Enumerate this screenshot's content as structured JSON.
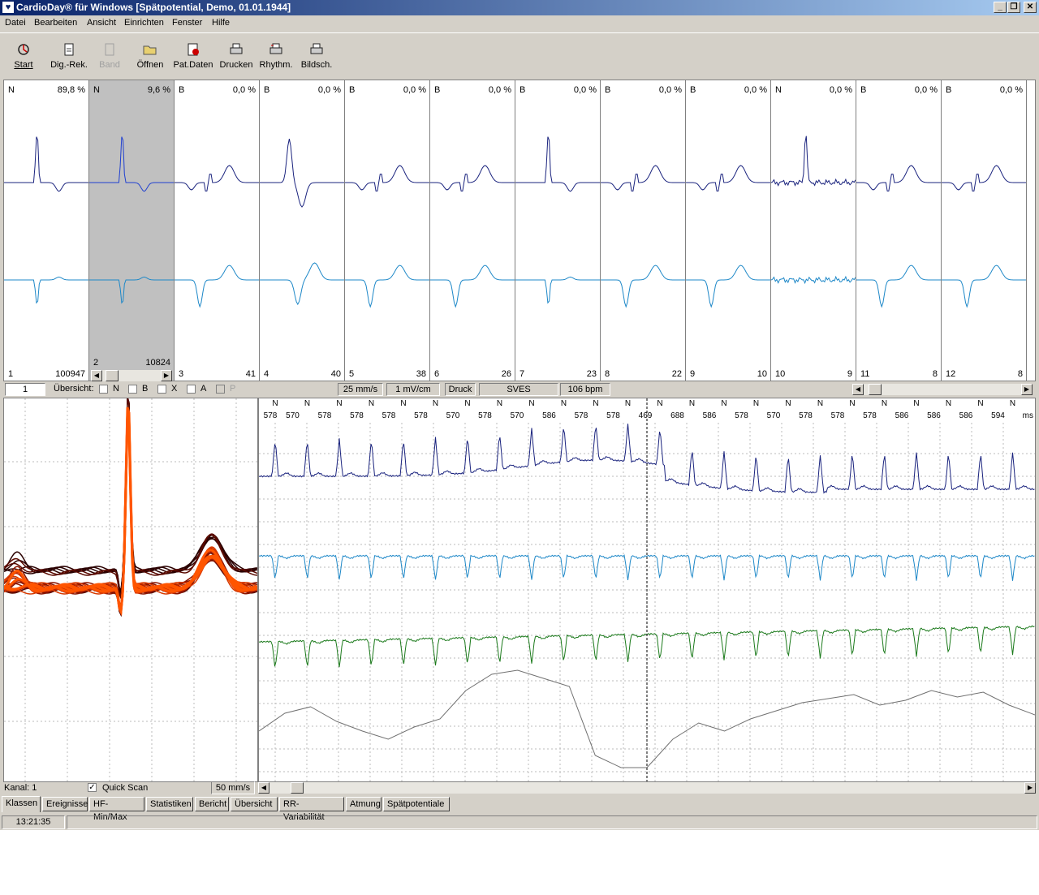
{
  "window": {
    "title": "CardioDay® für Windows [Spätpotential, Demo, 01.01.1944]",
    "minimize": "_",
    "restore": "❐",
    "close": "✕"
  },
  "menu": [
    "Datei",
    "Bearbeiten",
    "Ansicht",
    "Einrichten",
    "Fenster",
    "Hilfe"
  ],
  "toolbar": [
    {
      "label": "Start",
      "icon": "start-icon",
      "enabled": true
    },
    {
      "label": "Dig.-Rek.",
      "icon": "document-icon",
      "enabled": true
    },
    {
      "label": "Band",
      "icon": "band-icon",
      "enabled": false
    },
    {
      "label": "Öffnen",
      "icon": "folder-open-icon",
      "enabled": true
    },
    {
      "label": "Pat.Daten",
      "icon": "patient-data-icon",
      "enabled": true
    },
    {
      "label": "Drucken",
      "icon": "printer-icon",
      "enabled": true
    },
    {
      "label": "Rhythm.",
      "icon": "rhythm-icon",
      "enabled": true
    },
    {
      "label": "Bildsch.",
      "icon": "screen-print-icon",
      "enabled": true
    }
  ],
  "classes": [
    {
      "label": "N",
      "percent": "89,8 %",
      "index": "1",
      "count": "100947",
      "selected": false
    },
    {
      "label": "N",
      "percent": "9,6 %",
      "index": "2",
      "count": "10824",
      "selected": true
    },
    {
      "label": "B",
      "percent": "0,0 %",
      "index": "3",
      "count": "41",
      "selected": false
    },
    {
      "label": "B",
      "percent": "0,0 %",
      "index": "4",
      "count": "40",
      "selected": false
    },
    {
      "label": "B",
      "percent": "0,0 %",
      "index": "5",
      "count": "38",
      "selected": false
    },
    {
      "label": "B",
      "percent": "0,0 %",
      "index": "6",
      "count": "26",
      "selected": false
    },
    {
      "label": "B",
      "percent": "0,0 %",
      "index": "7",
      "count": "23",
      "selected": false
    },
    {
      "label": "B",
      "percent": "0,0 %",
      "index": "8",
      "count": "22",
      "selected": false
    },
    {
      "label": "B",
      "percent": "0,0 %",
      "index": "9",
      "count": "10",
      "selected": false
    },
    {
      "label": "N",
      "percent": "0,0 %",
      "index": "10",
      "count": "9",
      "selected": false
    },
    {
      "label": "B",
      "percent": "0,0 %",
      "index": "11",
      "count": "8",
      "selected": false
    },
    {
      "label": "B",
      "percent": "0,0 %",
      "index": "12",
      "count": "8",
      "selected": false
    }
  ],
  "controls": {
    "class_number": "1",
    "overview_label": "Übersicht:",
    "filters": [
      {
        "label": "N",
        "enabled": true
      },
      {
        "label": "B",
        "enabled": true
      },
      {
        "label": "X",
        "enabled": true
      },
      {
        "label": "A",
        "enabled": true
      },
      {
        "label": "P",
        "enabled": false
      }
    ],
    "speed": "25 mm/s",
    "gain": "1 mV/cm",
    "druck": "Druck",
    "event": "SVES",
    "heart_rate": "106 bpm"
  },
  "strip": {
    "beat_labels": [
      "N",
      "N",
      "N",
      "N",
      "N",
      "N",
      "N",
      "N",
      "N",
      "N",
      "N",
      "N",
      "N",
      "N",
      "N",
      "N",
      "N",
      "N",
      "N",
      "N",
      "N",
      "N",
      "N",
      "N"
    ],
    "rr_intervals": [
      "578",
      "570",
      "578",
      "578",
      "578",
      "578",
      "570",
      "578",
      "570",
      "586",
      "578",
      "578",
      "469",
      "688",
      "586",
      "578",
      "570",
      "578",
      "578",
      "578",
      "586",
      "586",
      "586",
      "594"
    ],
    "rr_unit": "ms"
  },
  "bottom": {
    "channel": "Kanal: 1",
    "quick_scan": "Quick Scan",
    "quick_scan_checked": true,
    "overlay_speed": "50 mm/s"
  },
  "tabs": [
    "Klassen",
    "Ereignisse",
    "HF-Min/Max",
    "Statistiken",
    "Bericht",
    "Übersicht",
    "RR-Variabilität",
    "Atmung",
    "Spätpotentiale"
  ],
  "active_tab": 0,
  "status": {
    "time": "13:21:35"
  },
  "colors": {
    "titlebar_start": "#0a246a",
    "ecg_channel1": "#1a237e",
    "ecg_channel2": "#1e88c8",
    "ecg_channel3": "#1b7a1b",
    "respiration": "#707070",
    "overlay_hot": "#ff6600"
  }
}
